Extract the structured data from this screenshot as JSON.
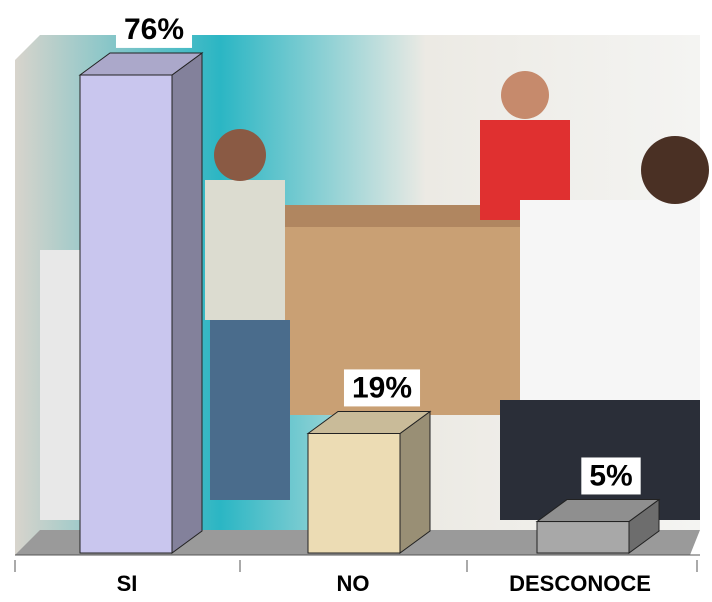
{
  "chart_data": {
    "type": "bar3d",
    "categories": [
      "SI",
      "NO",
      "DESCONOCE"
    ],
    "values": [
      76,
      19,
      5
    ],
    "value_labels": [
      "76%",
      "19%",
      "5%"
    ],
    "colors": [
      "#c9c6ee",
      "#ecdcb4",
      "#a8a8a8"
    ]
  }
}
